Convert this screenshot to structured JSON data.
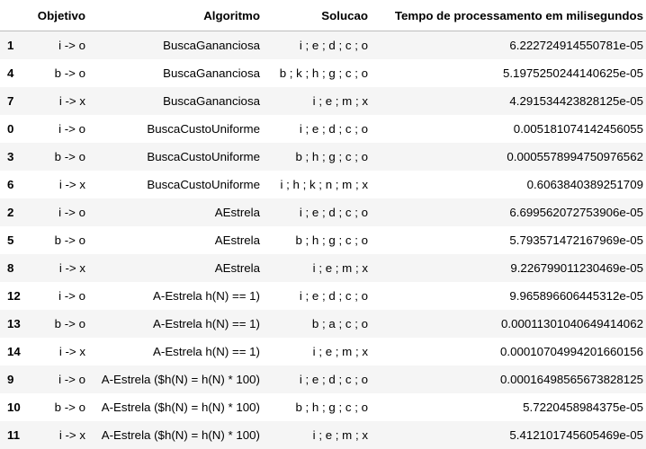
{
  "table": {
    "headers": [
      "",
      "Objetivo",
      "Algoritmo",
      "Solucao",
      "Tempo de processamento em milisegundos"
    ],
    "rows": [
      [
        "1",
        "i -> o",
        "BuscaGananciosa",
        "i ; e ; d ; c ; o",
        "6.222724914550781e-05"
      ],
      [
        "4",
        "b -> o",
        "BuscaGananciosa",
        "b ; k ; h ; g ; c ; o",
        "5.1975250244140625e-05"
      ],
      [
        "7",
        "i -> x",
        "BuscaGananciosa",
        "i ; e ; m ; x",
        "4.291534423828125e-05"
      ],
      [
        "0",
        "i -> o",
        "BuscaCustoUniforme",
        "i ; e ; d ; c ; o",
        "0.005181074142456055"
      ],
      [
        "3",
        "b -> o",
        "BuscaCustoUniforme",
        "b ; h ; g ; c ; o",
        "0.0005578994750976562"
      ],
      [
        "6",
        "i -> x",
        "BuscaCustoUniforme",
        "i ; h ; k ; n ; m ; x",
        "0.6063840389251709"
      ],
      [
        "2",
        "i -> o",
        "AEstrela",
        "i ; e ; d ; c ; o",
        "6.699562072753906e-05"
      ],
      [
        "5",
        "b -> o",
        "AEstrela",
        "b ; h ; g ; c ; o",
        "5.793571472167969e-05"
      ],
      [
        "8",
        "i -> x",
        "AEstrela",
        "i ; e ; m ; x",
        "9.226799011230469e-05"
      ],
      [
        "12",
        "i -> o",
        "A-Estrela h(N) == 1)",
        "i ; e ; d ; c ; o",
        "9.965896606445312e-05"
      ],
      [
        "13",
        "b -> o",
        "A-Estrela h(N) == 1)",
        "b ; a ; c ; o",
        "0.00011301040649414062"
      ],
      [
        "14",
        "i -> x",
        "A-Estrela h(N) == 1)",
        "i ; e ; m ; x",
        "0.00010704994201660156"
      ],
      [
        "9",
        "i -> o",
        "A-Estrela ($h(N) = h(N) * 100)",
        "i ; e ; d ; c ; o",
        "0.00016498565673828125"
      ],
      [
        "10",
        "b -> o",
        "A-Estrela ($h(N) = h(N) * 100)",
        "b ; h ; g ; c ; o",
        "5.7220458984375e-05"
      ],
      [
        "11",
        "i -> x",
        "A-Estrela ($h(N) = h(N) * 100)",
        "i ; e ; m ; x",
        "5.412101745605469e-05"
      ]
    ]
  }
}
